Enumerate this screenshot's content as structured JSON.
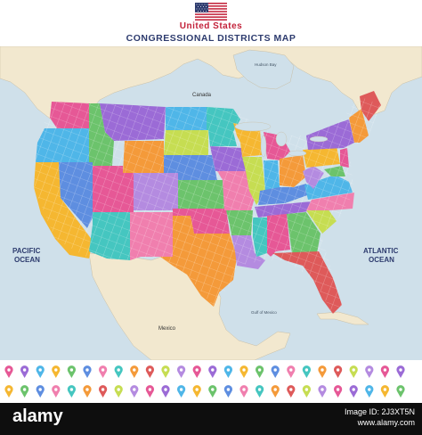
{
  "header": {
    "title_line1": "United States",
    "title_line2": "CONGRESSIONAL DISTRICTS MAP"
  },
  "map": {
    "labels": {
      "canada": "Canada",
      "hudson_bay": "Hudson Bay",
      "mexico": "Mexico",
      "gulf_of_mexico": "Gulf of Mexico",
      "pacific_line1": "PACIFIC",
      "pacific_line2": "OCEAN",
      "atlantic_line1": "ATLANTIC",
      "atlantic_line2": "OCEAN"
    },
    "colors": {
      "ocean": "#cfe0ea",
      "land": "#f2e8cf",
      "district_border": "#ffffff",
      "state_palette": [
        "#e65896",
        "#9b6bd6",
        "#4fb6e8",
        "#f5b731",
        "#6cc36c",
        "#f07fae",
        "#45c6c0",
        "#b48be0",
        "#f49a3a",
        "#5e8ee0",
        "#c6dd52",
        "#de5a5a"
      ]
    }
  },
  "legend": {
    "rows": 2,
    "icons": [
      {
        "name": "map-pin",
        "color": "#e65896"
      },
      {
        "name": "map-pin",
        "color": "#9b6bd6"
      },
      {
        "name": "map-pin",
        "color": "#4fb6e8"
      },
      {
        "name": "map-pin",
        "color": "#f5b731"
      },
      {
        "name": "map-pin",
        "color": "#6cc36c"
      },
      {
        "name": "map-pin",
        "color": "#5e8ee0"
      },
      {
        "name": "map-pin",
        "color": "#f07fae"
      },
      {
        "name": "map-pin",
        "color": "#45c6c0"
      },
      {
        "name": "map-pin",
        "color": "#f49a3a"
      },
      {
        "name": "map-pin",
        "color": "#de5a5a"
      },
      {
        "name": "map-pin",
        "color": "#c6dd52"
      },
      {
        "name": "map-pin",
        "color": "#b48be0"
      }
    ]
  },
  "footer": {
    "logo": "alamy",
    "image_id_line1": "Image ID: 2J3XT5N",
    "image_id_line2": "www.alamy.com"
  }
}
